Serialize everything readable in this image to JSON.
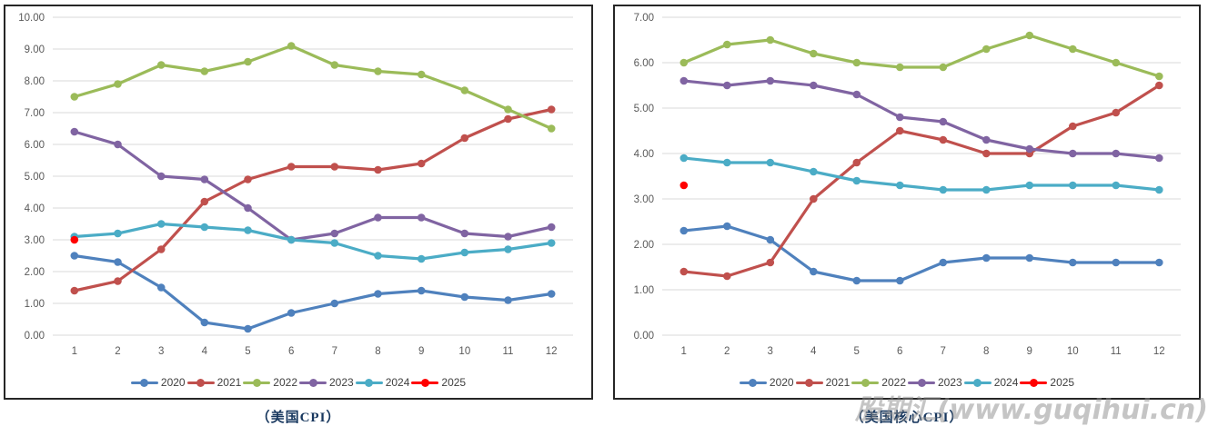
{
  "watermark": "股期汇(www.guqihui.cn)",
  "chart_data": [
    {
      "type": "line",
      "title": "（美国CPI）",
      "xlabel": "",
      "ylabel": "",
      "x": [
        1,
        2,
        3,
        4,
        5,
        6,
        7,
        8,
        9,
        10,
        11,
        12
      ],
      "ylim": [
        0,
        10
      ],
      "ystep": 1,
      "grid": true,
      "legend_position": "bottom",
      "series": [
        {
          "name": "2020",
          "color": "#4F81BD",
          "values": [
            2.5,
            2.3,
            1.5,
            0.4,
            0.2,
            0.7,
            1.0,
            1.3,
            1.4,
            1.2,
            1.1,
            1.3
          ]
        },
        {
          "name": "2021",
          "color": "#C0504D",
          "values": [
            1.4,
            1.7,
            2.7,
            4.2,
            4.9,
            5.3,
            5.3,
            5.2,
            5.4,
            6.2,
            6.8,
            7.1
          ]
        },
        {
          "name": "2022",
          "color": "#9BBB59",
          "values": [
            7.5,
            7.9,
            8.5,
            8.3,
            8.6,
            9.1,
            8.5,
            8.3,
            8.2,
            7.7,
            7.1,
            6.5
          ]
        },
        {
          "name": "2023",
          "color": "#8064A2",
          "values": [
            6.4,
            6.0,
            5.0,
            4.9,
            4.0,
            3.0,
            3.2,
            3.7,
            3.7,
            3.2,
            3.1,
            3.4
          ]
        },
        {
          "name": "2024",
          "color": "#4BACC6",
          "values": [
            3.1,
            3.2,
            3.5,
            3.4,
            3.3,
            3.0,
            2.9,
            2.5,
            2.4,
            2.6,
            2.7,
            2.9
          ]
        },
        {
          "name": "2025",
          "color": "#FF0000",
          "values": [
            3.0
          ]
        }
      ]
    },
    {
      "type": "line",
      "title": "（美国核心CPI）",
      "xlabel": "",
      "ylabel": "",
      "x": [
        1,
        2,
        3,
        4,
        5,
        6,
        7,
        8,
        9,
        10,
        11,
        12
      ],
      "ylim": [
        0,
        7
      ],
      "ystep": 1,
      "grid": true,
      "legend_position": "bottom",
      "series": [
        {
          "name": "2020",
          "color": "#4F81BD",
          "values": [
            2.3,
            2.4,
            2.1,
            1.4,
            1.2,
            1.2,
            1.6,
            1.7,
            1.7,
            1.6,
            1.6,
            1.6
          ]
        },
        {
          "name": "2021",
          "color": "#C0504D",
          "values": [
            1.4,
            1.3,
            1.6,
            3.0,
            3.8,
            4.5,
            4.3,
            4.0,
            4.0,
            4.6,
            4.9,
            5.5
          ]
        },
        {
          "name": "2022",
          "color": "#9BBB59",
          "values": [
            6.0,
            6.4,
            6.5,
            6.2,
            6.0,
            5.9,
            5.9,
            6.3,
            6.6,
            6.3,
            6.0,
            5.7
          ]
        },
        {
          "name": "2023",
          "color": "#8064A2",
          "values": [
            5.6,
            5.5,
            5.6,
            5.5,
            5.3,
            4.8,
            4.7,
            4.3,
            4.1,
            4.0,
            4.0,
            3.9
          ]
        },
        {
          "name": "2024",
          "color": "#4BACC6",
          "values": [
            3.9,
            3.8,
            3.8,
            3.6,
            3.4,
            3.3,
            3.2,
            3.2,
            3.3,
            3.3,
            3.3,
            3.2
          ]
        },
        {
          "name": "2025",
          "color": "#FF0000",
          "values": [
            3.3
          ]
        }
      ]
    }
  ]
}
